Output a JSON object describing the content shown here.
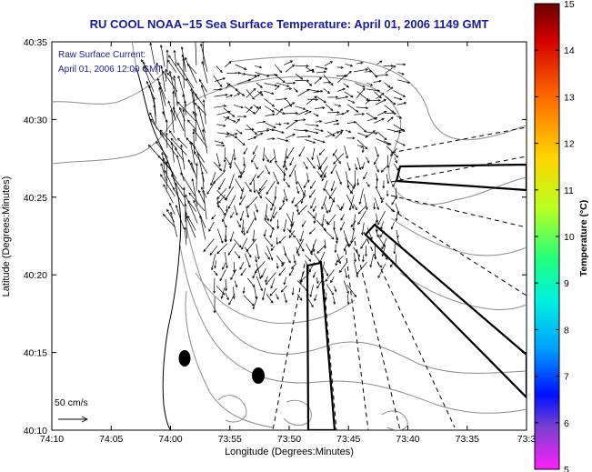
{
  "title": "RU COOL  NOAA−15  Sea Surface Temperature:  April 01, 2006 1149 GMT",
  "annotation": {
    "line1": "Raw Surface Current:",
    "line2": "April 01, 2006 12:00 GMT"
  },
  "scale": {
    "label": "50 cm/s"
  },
  "xaxis": {
    "label": "Longitude (Degrees:Minutes)",
    "ticks": [
      "74:10",
      "74:05",
      "74:00",
      "73:55",
      "73:50",
      "73:45",
      "73:40",
      "73:35",
      "73:3"
    ]
  },
  "yaxis": {
    "label": "Latitude (Degrees:Minutes)",
    "ticks": [
      "40:35",
      "40:30",
      "40:25",
      "40:20",
      "40:15",
      "40:10"
    ]
  },
  "colorbar": {
    "label": "Temperature (°C)",
    "ticks": [
      "15",
      "14",
      "13",
      "12",
      "11",
      "10",
      "9",
      "8",
      "7",
      "6",
      "5"
    ],
    "stops": [
      "#8b0000",
      "#ff0000",
      "#ff8000",
      "#ffff00",
      "#80ff40",
      "#00ff80",
      "#00ffff",
      "#0080ff",
      "#0000ff",
      "#6a3fd6",
      "#ff00ff"
    ]
  }
}
